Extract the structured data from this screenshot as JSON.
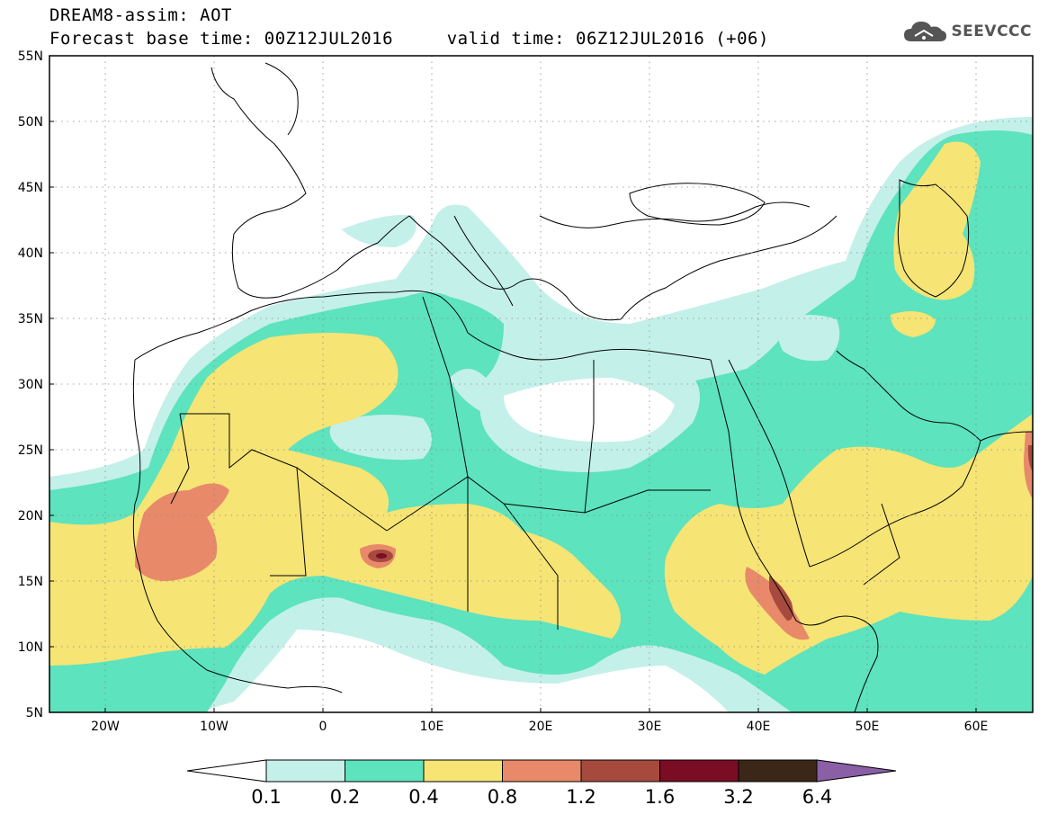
{
  "header": {
    "line1": "DREAM8-assim: AOT",
    "line2": "Forecast base time: 00Z12JUL2016     valid time: 06Z12JUL2016 (+06)",
    "logo_text": "SEEVCCC"
  },
  "map": {
    "lat_labels": [
      "55N",
      "50N",
      "45N",
      "40N",
      "35N",
      "30N",
      "25N",
      "20N",
      "15N",
      "10N",
      "5N"
    ],
    "lon_labels": [
      "20W",
      "10W",
      "0",
      "10E",
      "20E",
      "30E",
      "40E",
      "50E",
      "60E"
    ],
    "lon_range": [
      -25,
      65
    ],
    "lat_range": [
      5,
      55
    ]
  },
  "colorbar": {
    "labels": [
      "0.1",
      "0.2",
      "0.4",
      "0.8",
      "1.2",
      "1.6",
      "3.2",
      "6.4"
    ],
    "colors": [
      "#c4f0ea",
      "#5de3bd",
      "#f6e475",
      "#e8896a",
      "#a64a3e",
      "#7a0c24",
      "#3a2718",
      "#8a5fa6"
    ]
  },
  "colors": {
    "level1": "#c4f0ea",
    "level2": "#5de3bd",
    "level3": "#f6e475",
    "level4": "#e8896a",
    "level5": "#a64a3e",
    "level6": "#7a0c24"
  }
}
